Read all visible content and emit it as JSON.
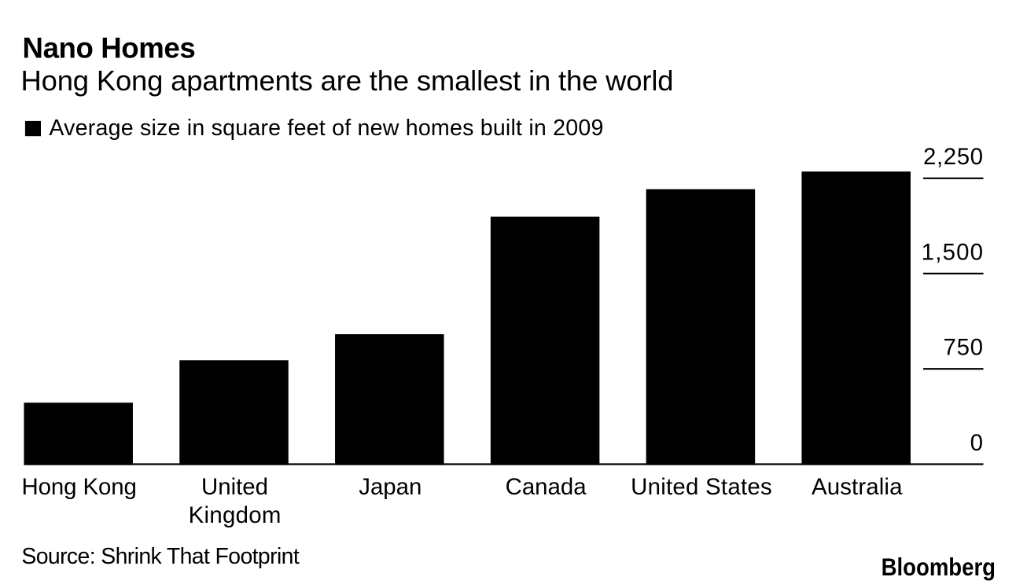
{
  "header": {
    "title": "Nano Homes",
    "subtitle": "Hong Kong apartments are the smallest in the world"
  },
  "legend": {
    "swatch_color": "#000000",
    "label": "Average size in square feet of new homes built in 2009"
  },
  "footer": {
    "source": "Source: Shrink That Footprint",
    "brand": "Bloomberg"
  },
  "colors": {
    "background": "#ffffff",
    "bar": "#000000",
    "axis": "#000000",
    "text": "#000000"
  },
  "chart_data": {
    "type": "bar",
    "title": "Nano Homes",
    "subtitle": "Hong Kong apartments are the smallest in the world",
    "series_label": "Average size in square feet of new homes built in 2009",
    "categories": [
      "Hong Kong",
      "United Kingdom",
      "Japan",
      "Canada",
      "United States",
      "Australia"
    ],
    "category_display_lines": [
      [
        "Hong Kong"
      ],
      [
        "United",
        "Kingdom"
      ],
      [
        "Japan"
      ],
      [
        "Canada"
      ],
      [
        "United States"
      ],
      [
        "Australia"
      ]
    ],
    "values": [
      484,
      818,
      1023,
      1948,
      2164,
      2303
    ],
    "xlabel": "",
    "ylabel": "",
    "ylim": [
      0,
      2250
    ],
    "yticks": [
      {
        "value": 0,
        "label": "0"
      },
      {
        "value": 750,
        "label": "750"
      },
      {
        "value": 1500,
        "label": "1,500"
      },
      {
        "value": 2250,
        "label": "2,250"
      }
    ],
    "grid": false,
    "legend_position": "top-left",
    "axis_side": "right",
    "source": "Shrink That Footprint"
  }
}
